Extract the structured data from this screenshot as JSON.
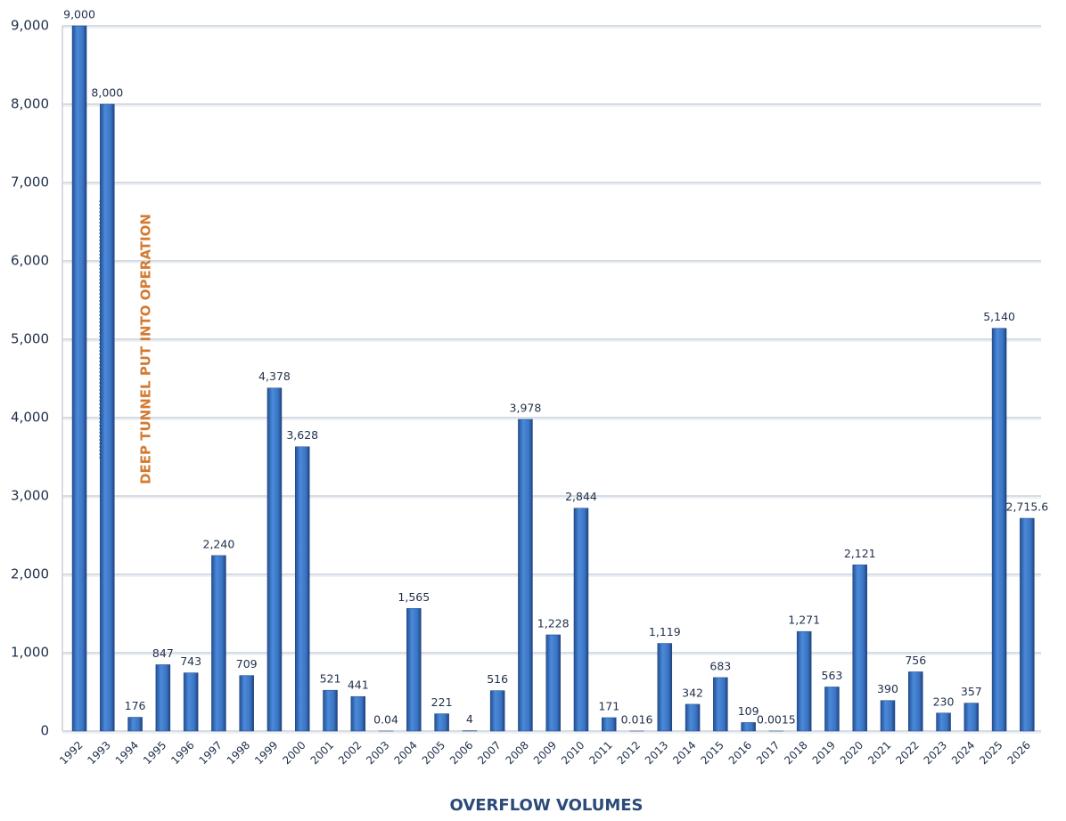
{
  "chart_data": {
    "type": "bar",
    "title": "OVERFLOW VOLUMES",
    "annotation": "DEEP TUNNEL PUT INTO OPERATION",
    "categories": [
      "1992",
      "1993",
      "1994",
      "1995",
      "1996",
      "1997",
      "1998",
      "1999",
      "2000",
      "2001",
      "2002",
      "2003",
      "2004",
      "2005",
      "2006",
      "2007",
      "2008",
      "2009",
      "2010",
      "2011",
      "2012",
      "2013",
      "2014",
      "2015",
      "2016",
      "2017",
      "2018",
      "2019",
      "2020",
      "2021",
      "2022",
      "2023",
      "2024",
      "2025",
      "2026"
    ],
    "values": [
      9000,
      8000,
      176,
      847,
      743,
      2240,
      709,
      4378,
      3628,
      521,
      441,
      0.04,
      1565,
      221,
      4,
      516,
      3978,
      1228,
      2844,
      171,
      0.016,
      1119,
      342,
      683,
      109,
      0.0015,
      1271,
      563,
      2121,
      390,
      756,
      230,
      357,
      5140,
      2715.6
    ],
    "value_labels": [
      "9,000",
      "8,000",
      "176",
      "847",
      "743",
      "2,240",
      "709",
      "4,378",
      "3,628",
      "521",
      "441",
      "0.04",
      "1,565",
      "221",
      "4",
      "516",
      "3,978",
      "1,228",
      "2,844",
      "171",
      "0.016",
      "1,119",
      "342",
      "683",
      "109",
      "0.0015",
      "1,271",
      "563",
      "2,121",
      "390",
      "756",
      "230",
      "357",
      "5,140",
      "2,715.6"
    ],
    "color": "#3a74c2",
    "ylim": [
      0,
      9000
    ],
    "yticks": [
      0,
      {
        "value": 1000,
        "label": "1,000"
      },
      {
        "value": 2000,
        "label": "2,000"
      },
      {
        "value": 3000,
        "label": "3,000"
      },
      {
        "value": 4000,
        "label": "4,000"
      },
      {
        "value": 5000,
        "label": "5,000"
      },
      {
        "value": 6000,
        "label": "6,000"
      },
      {
        "value": 7000,
        "label": "7,000"
      },
      {
        "value": 8000,
        "label": "8,000"
      },
      {
        "value": 9000,
        "label": "9,000"
      }
    ],
    "grid": true
  }
}
